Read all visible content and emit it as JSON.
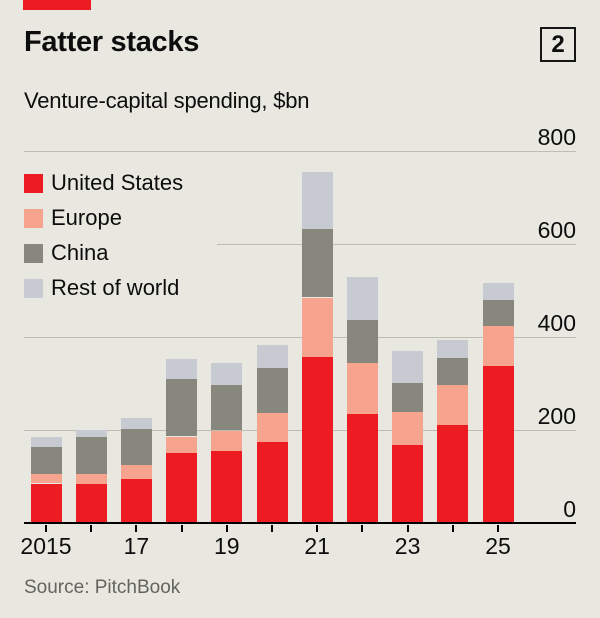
{
  "header": {
    "title": "Fatter stacks",
    "subtitle": "Venture-capital spending, $bn",
    "index_label": "2"
  },
  "footer": {
    "source": "Source: PitchBook"
  },
  "colors": {
    "background": "#e9e8e0",
    "accent_red": "#ed1b22",
    "united_states": "#ed1b22",
    "europe": "#f6a48d",
    "china": "#87877d",
    "rest_of_world": "#c7cad0",
    "gridline": "#bfbdb1",
    "axis": "#000000",
    "text": "#0d0d0d",
    "muted_text": "#64645e"
  },
  "legend": {
    "items": [
      {
        "label": "United States",
        "color": "#ed1b22"
      },
      {
        "label": "Europe",
        "color": "#f6a48d"
      },
      {
        "label": "China",
        "color": "#87877d"
      },
      {
        "label": "Rest of world",
        "color": "#c7cad0"
      }
    ]
  },
  "chart_data": {
    "type": "bar",
    "stacked": true,
    "title": "Fatter stacks",
    "subtitle": "Venture-capital spending, $bn",
    "unit": "$bn",
    "categories": [
      "2015",
      "2016",
      "2017",
      "2018",
      "2019",
      "2020",
      "2021",
      "2022",
      "2023",
      "2024",
      "2025"
    ],
    "x_tick_labels": [
      "2015",
      "17",
      "19",
      "21",
      "23",
      "25"
    ],
    "series": [
      {
        "name": "United States",
        "color": "#ed1b22",
        "values": [
          85,
          84,
          94,
          150,
          155,
          175,
          358,
          235,
          167,
          211,
          338
        ]
      },
      {
        "name": "Europe",
        "color": "#f6a48d",
        "values": [
          20,
          21,
          30,
          36,
          44,
          61,
          127,
          109,
          71,
          86,
          85
        ]
      },
      {
        "name": "China",
        "color": "#87877d",
        "values": [
          58,
          79,
          78,
          123,
          97,
          98,
          148,
          93,
          64,
          57,
          56
        ]
      },
      {
        "name": "Rest of world",
        "color": "#c7cad0",
        "values": [
          23,
          16,
          24,
          43,
          48,
          49,
          123,
          93,
          69,
          40,
          37
        ]
      }
    ],
    "totals": [
      186,
      200,
      226,
      352,
      344,
      383,
      756,
      530,
      371,
      394,
      516
    ],
    "ylim": [
      0,
      800
    ],
    "y_ticks": [
      0,
      200,
      400,
      600,
      800
    ],
    "y_axis_side": "right",
    "grid": true,
    "legend_position": "upper-left",
    "source": "Source: PitchBook"
  }
}
